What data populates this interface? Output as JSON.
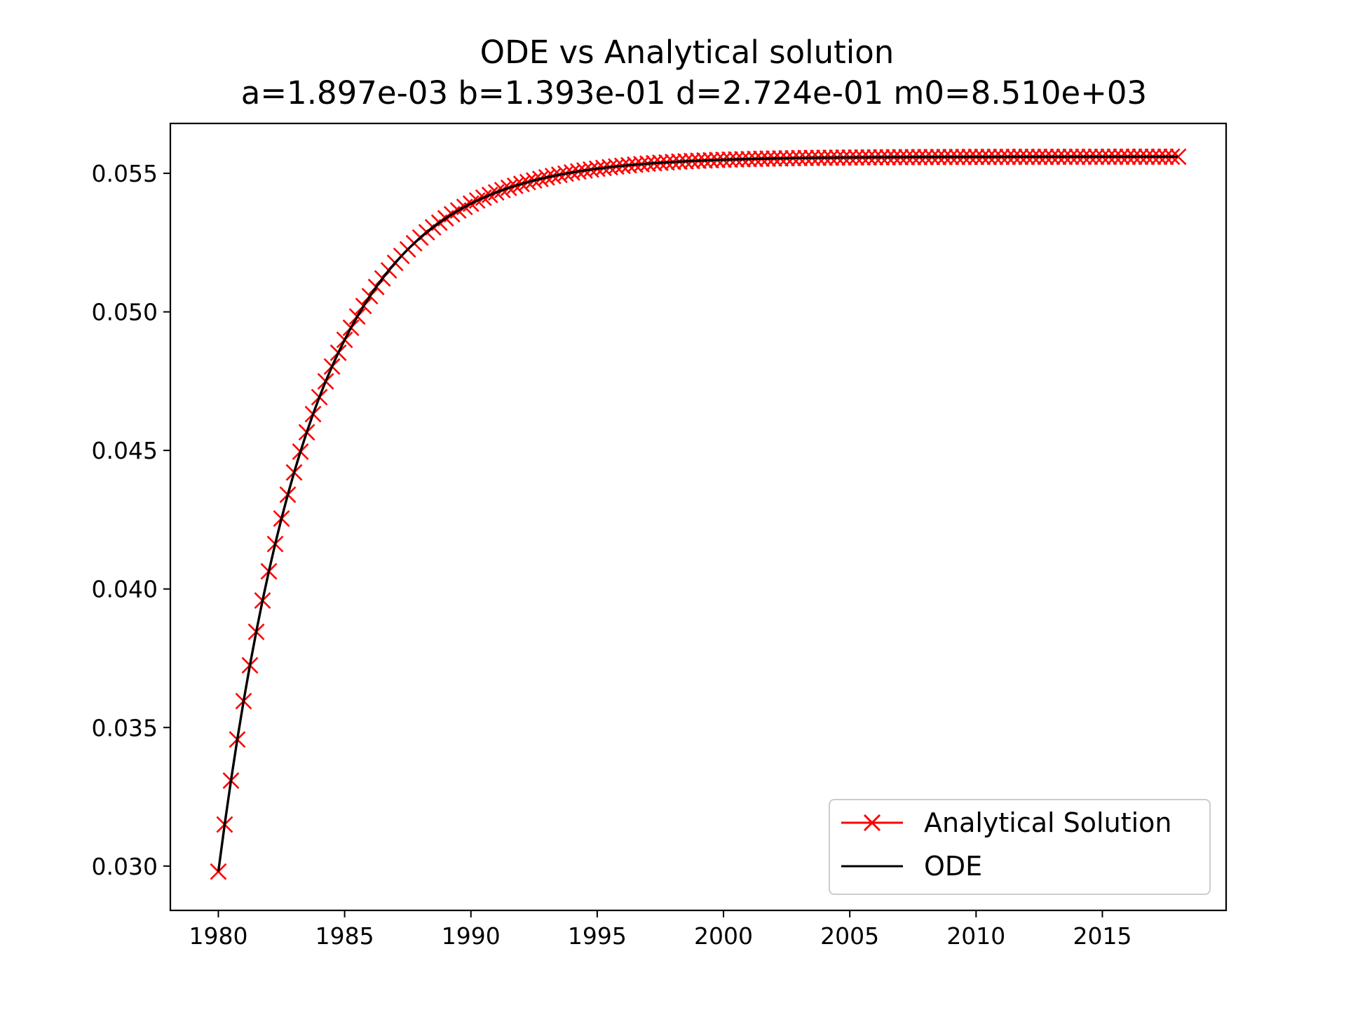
{
  "chart_data": {
    "type": "line",
    "title": "ODE vs Analytical solution",
    "subtitle": "a=1.897e-03 b=1.393e-01 d=2.724e-01 m0=8.510e+03",
    "xlabel": "",
    "ylabel": "",
    "xlim": [
      1978.1,
      2019.9
    ],
    "ylim": [
      0.0284,
      0.0568
    ],
    "xticks": [
      1980,
      1985,
      1990,
      1995,
      2000,
      2005,
      2010,
      2015
    ],
    "yticks": [
      0.03,
      0.035,
      0.04,
      0.045,
      0.05,
      0.055
    ],
    "xtick_labels": [
      "1980",
      "1985",
      "1990",
      "1995",
      "2000",
      "2005",
      "2010",
      "2015"
    ],
    "ytick_labels": [
      "0.030",
      "0.035",
      "0.040",
      "0.045",
      "0.050",
      "0.055"
    ],
    "grid": false,
    "legend_position": "lower-right",
    "x_start": 1980,
    "x_end": 2018,
    "x_step": 0.25,
    "y_start": 0.0298,
    "y_end": 0.0556,
    "decay_rate": 0.2724,
    "series": [
      {
        "name": "Analytical Solution",
        "color": "#ff0000",
        "marker": "x",
        "linestyle": "solid"
      },
      {
        "name": "ODE",
        "color": "#000000",
        "marker": "none",
        "linestyle": "solid"
      }
    ]
  }
}
